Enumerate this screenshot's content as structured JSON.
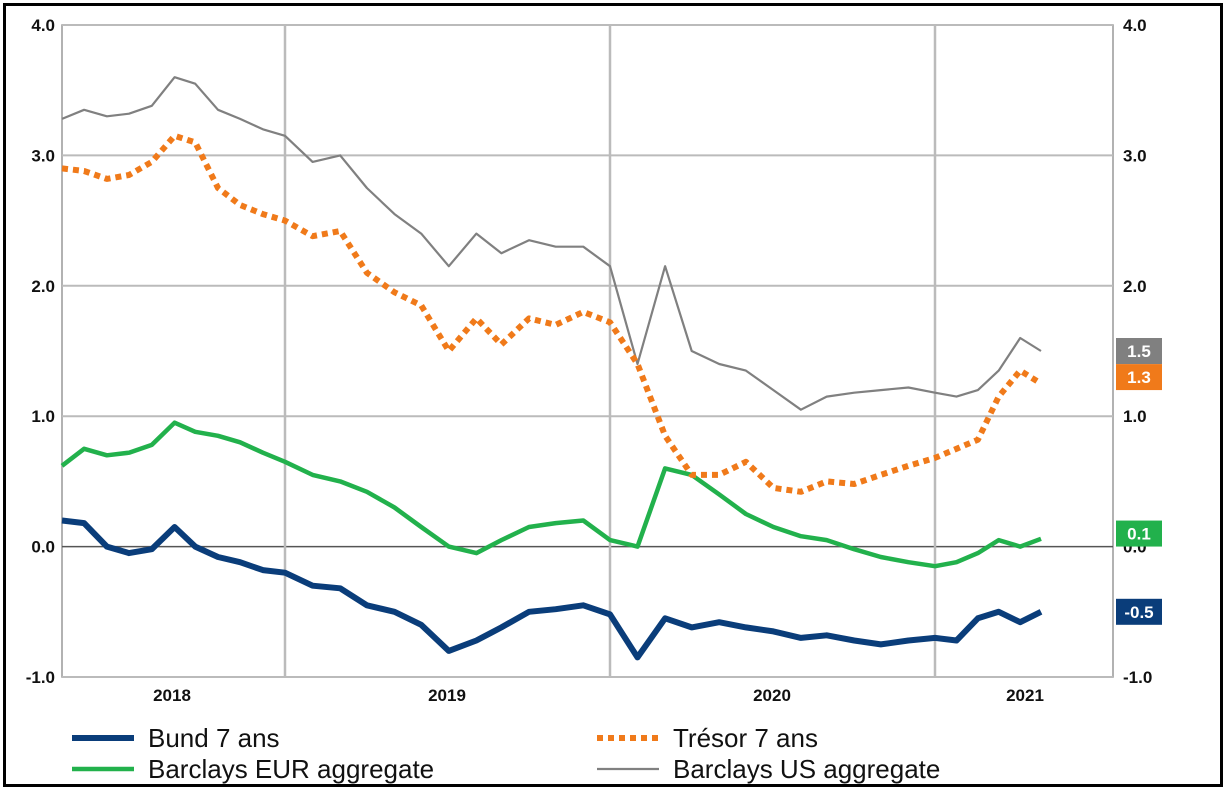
{
  "chart_data": {
    "type": "line",
    "title": "",
    "xlabel": "",
    "ylabel": "",
    "ylim": [
      -1.0,
      4.0
    ],
    "y_ticks_left": [
      "4.0",
      "3.0",
      "2.0",
      "1.0",
      "0.0",
      "-1.0"
    ],
    "y_ticks_right": [
      "4.0",
      "3.0",
      "2.0",
      "1.0",
      "0.0",
      "-1.0"
    ],
    "x_ticks": [
      "2018",
      "2019",
      "2020",
      "2021"
    ],
    "grid": true,
    "legend_placement": "bottom",
    "series": [
      {
        "name": "Bund 7 ans",
        "color": "#0a3d7a",
        "style": "solid-thick",
        "end_label": "-0.5",
        "points": [
          [
            "2017-09-01",
            0.2
          ],
          [
            "2017-10-01",
            0.18
          ],
          [
            "2017-11-01",
            0.0
          ],
          [
            "2017-12-01",
            -0.05
          ],
          [
            "2018-01-01",
            -0.02
          ],
          [
            "2018-02-01",
            0.15
          ],
          [
            "2018-03-01",
            0.0
          ],
          [
            "2018-04-01",
            -0.08
          ],
          [
            "2018-05-01",
            -0.12
          ],
          [
            "2018-06-01",
            -0.18
          ],
          [
            "2018-07-01",
            -0.2
          ],
          [
            "2018-08-01",
            -0.3
          ],
          [
            "2018-09-01",
            -0.32
          ],
          [
            "2018-10-01",
            -0.45
          ],
          [
            "2018-11-01",
            -0.5
          ],
          [
            "2018-12-01",
            -0.6
          ],
          [
            "2019-01-01",
            -0.8
          ],
          [
            "2019-02-01",
            -0.72
          ],
          [
            "2019-03-01",
            -0.62
          ],
          [
            "2019-04-01",
            -0.5
          ],
          [
            "2019-05-01",
            -0.48
          ],
          [
            "2019-06-01",
            -0.45
          ],
          [
            "2019-07-01",
            -0.52
          ],
          [
            "2019-08-01",
            -0.85
          ],
          [
            "2019-09-01",
            -0.55
          ],
          [
            "2019-10-01",
            -0.62
          ],
          [
            "2019-11-01",
            -0.58
          ],
          [
            "2019-12-01",
            -0.62
          ],
          [
            "2020-01-01",
            -0.65
          ],
          [
            "2020-02-01",
            -0.7
          ],
          [
            "2020-03-01",
            -0.68
          ],
          [
            "2020-04-01",
            -0.72
          ],
          [
            "2020-05-01",
            -0.75
          ],
          [
            "2020-06-01",
            -0.72
          ],
          [
            "2020-07-01",
            -0.7
          ],
          [
            "2020-08-01",
            -0.72
          ],
          [
            "2020-09-01",
            -0.55
          ],
          [
            "2020-10-01",
            -0.5
          ],
          [
            "2020-11-01",
            -0.58
          ],
          [
            "2020-12-01",
            -0.5
          ]
        ]
      },
      {
        "name": "Trésor 7 ans",
        "color": "#f07a1a",
        "style": "dotted-thick",
        "end_label": "1.3",
        "points": [
          [
            "2017-09-01",
            2.9
          ],
          [
            "2017-10-01",
            2.88
          ],
          [
            "2017-11-01",
            2.82
          ],
          [
            "2017-12-01",
            2.85
          ],
          [
            "2018-01-01",
            2.95
          ],
          [
            "2018-02-01",
            3.15
          ],
          [
            "2018-03-01",
            3.1
          ],
          [
            "2018-04-01",
            2.75
          ],
          [
            "2018-05-01",
            2.62
          ],
          [
            "2018-06-01",
            2.55
          ],
          [
            "2018-07-01",
            2.5
          ],
          [
            "2018-08-01",
            2.38
          ],
          [
            "2018-09-01",
            2.42
          ],
          [
            "2018-10-01",
            2.1
          ],
          [
            "2018-11-01",
            1.95
          ],
          [
            "2018-12-01",
            1.85
          ],
          [
            "2019-01-01",
            1.5
          ],
          [
            "2019-02-01",
            1.75
          ],
          [
            "2019-03-01",
            1.55
          ],
          [
            "2019-04-01",
            1.75
          ],
          [
            "2019-05-01",
            1.7
          ],
          [
            "2019-06-01",
            1.8
          ],
          [
            "2019-07-01",
            1.72
          ],
          [
            "2019-08-01",
            1.4
          ],
          [
            "2019-09-01",
            0.85
          ],
          [
            "2019-10-01",
            0.55
          ],
          [
            "2019-11-01",
            0.55
          ],
          [
            "2019-12-01",
            0.65
          ],
          [
            "2020-01-01",
            0.45
          ],
          [
            "2020-02-01",
            0.42
          ],
          [
            "2020-03-01",
            0.5
          ],
          [
            "2020-04-01",
            0.48
          ],
          [
            "2020-05-01",
            0.55
          ],
          [
            "2020-06-01",
            0.62
          ],
          [
            "2020-07-01",
            0.68
          ],
          [
            "2020-08-01",
            0.75
          ],
          [
            "2020-09-01",
            0.82
          ],
          [
            "2020-10-01",
            1.15
          ],
          [
            "2020-11-01",
            1.35
          ],
          [
            "2020-12-01",
            1.25
          ]
        ]
      },
      {
        "name": "Barclays EUR aggregate",
        "color": "#22b14c",
        "style": "solid",
        "end_label": "0.1",
        "points": [
          [
            "2017-09-01",
            0.62
          ],
          [
            "2017-10-01",
            0.75
          ],
          [
            "2017-11-01",
            0.7
          ],
          [
            "2017-12-01",
            0.72
          ],
          [
            "2018-01-01",
            0.78
          ],
          [
            "2018-02-01",
            0.95
          ],
          [
            "2018-03-01",
            0.88
          ],
          [
            "2018-04-01",
            0.85
          ],
          [
            "2018-05-01",
            0.8
          ],
          [
            "2018-06-01",
            0.72
          ],
          [
            "2018-07-01",
            0.65
          ],
          [
            "2018-08-01",
            0.55
          ],
          [
            "2018-09-01",
            0.5
          ],
          [
            "2018-10-01",
            0.42
          ],
          [
            "2018-11-01",
            0.3
          ],
          [
            "2018-12-01",
            0.15
          ],
          [
            "2019-01-01",
            0.0
          ],
          [
            "2019-02-01",
            -0.05
          ],
          [
            "2019-03-01",
            0.05
          ],
          [
            "2019-04-01",
            0.15
          ],
          [
            "2019-05-01",
            0.18
          ],
          [
            "2019-06-01",
            0.2
          ],
          [
            "2019-07-01",
            0.05
          ],
          [
            "2019-08-01",
            0.0
          ],
          [
            "2019-09-01",
            0.6
          ],
          [
            "2019-10-01",
            0.55
          ],
          [
            "2019-11-01",
            0.4
          ],
          [
            "2019-12-01",
            0.25
          ],
          [
            "2020-01-01",
            0.15
          ],
          [
            "2020-02-01",
            0.08
          ],
          [
            "2020-03-01",
            0.05
          ],
          [
            "2020-04-01",
            -0.02
          ],
          [
            "2020-05-01",
            -0.08
          ],
          [
            "2020-06-01",
            -0.12
          ],
          [
            "2020-07-01",
            -0.15
          ],
          [
            "2020-08-01",
            -0.12
          ],
          [
            "2020-09-01",
            -0.05
          ],
          [
            "2020-10-01",
            0.05
          ],
          [
            "2020-11-01",
            0.0
          ],
          [
            "2020-12-01",
            0.06
          ]
        ]
      },
      {
        "name": "Barclays US aggregate",
        "color": "#808080",
        "style": "solid-thin",
        "end_label": "1.5",
        "points": [
          [
            "2017-09-01",
            3.28
          ],
          [
            "2017-10-01",
            3.35
          ],
          [
            "2017-11-01",
            3.3
          ],
          [
            "2017-12-01",
            3.32
          ],
          [
            "2018-01-01",
            3.38
          ],
          [
            "2018-02-01",
            3.6
          ],
          [
            "2018-03-01",
            3.55
          ],
          [
            "2018-04-01",
            3.35
          ],
          [
            "2018-05-01",
            3.28
          ],
          [
            "2018-06-01",
            3.2
          ],
          [
            "2018-07-01",
            3.15
          ],
          [
            "2018-08-01",
            2.95
          ],
          [
            "2018-09-01",
            3.0
          ],
          [
            "2018-10-01",
            2.75
          ],
          [
            "2018-11-01",
            2.55
          ],
          [
            "2018-12-01",
            2.4
          ],
          [
            "2019-01-01",
            2.15
          ],
          [
            "2019-02-01",
            2.4
          ],
          [
            "2019-03-01",
            2.25
          ],
          [
            "2019-04-01",
            2.35
          ],
          [
            "2019-05-01",
            2.3
          ],
          [
            "2019-06-01",
            2.3
          ],
          [
            "2019-07-01",
            2.15
          ],
          [
            "2019-08-01",
            1.4
          ],
          [
            "2019-09-01",
            2.15
          ],
          [
            "2019-10-01",
            1.5
          ],
          [
            "2019-11-01",
            1.4
          ],
          [
            "2019-12-01",
            1.35
          ],
          [
            "2020-01-01",
            1.2
          ],
          [
            "2020-02-01",
            1.05
          ],
          [
            "2020-03-01",
            1.15
          ],
          [
            "2020-04-01",
            1.18
          ],
          [
            "2020-05-01",
            1.2
          ],
          [
            "2020-06-01",
            1.22
          ],
          [
            "2020-07-01",
            1.18
          ],
          [
            "2020-08-01",
            1.15
          ],
          [
            "2020-09-01",
            1.2
          ],
          [
            "2020-10-01",
            1.35
          ],
          [
            "2020-11-01",
            1.6
          ],
          [
            "2020-12-01",
            1.5
          ]
        ]
      }
    ]
  }
}
